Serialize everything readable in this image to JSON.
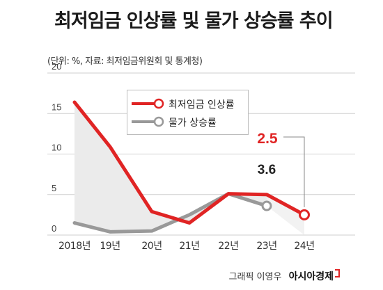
{
  "chart_data": {
    "type": "line",
    "title": "최저임금 인상률 및 물가 상승률 추이",
    "subtitle": "(단위: %, 자료: 최저임금위원회 및 통계청)",
    "categories": [
      "2018년",
      "19년",
      "20년",
      "21년",
      "22년",
      "23년",
      "24년"
    ],
    "ylim": [
      0,
      20
    ],
    "yticks": [
      "0",
      "5",
      "10",
      "15",
      "20"
    ],
    "grid": true,
    "legend_position": "top-center",
    "series": [
      {
        "name": "최저임금 인상률",
        "color": "#e02424",
        "values": [
          16.4,
          10.9,
          2.9,
          1.5,
          5.1,
          5.0,
          2.5
        ]
      },
      {
        "name": "물가 상승률",
        "color": "#999999",
        "values": [
          1.5,
          0.4,
          0.5,
          2.5,
          5.1,
          3.6,
          null
        ]
      }
    ],
    "annotations": [
      {
        "text": "2.5",
        "color": "#e02424"
      },
      {
        "text": "3.6",
        "color": "#222222"
      }
    ]
  },
  "footer": {
    "credit": "그래픽 이영우",
    "brand": "아시아경제"
  }
}
